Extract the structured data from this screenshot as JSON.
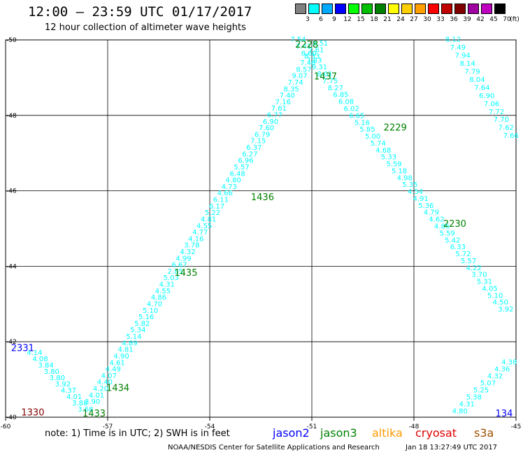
{
  "header": {
    "title": "12:00 – 23:59 UTC 01/17/2017",
    "subtitle": "12 hour collection of altimeter wave heights"
  },
  "legend": {
    "unit": "(ft)",
    "items": [
      {
        "label": "3",
        "color": "#808080"
      },
      {
        "label": "6",
        "color": "#00ffff"
      },
      {
        "label": "9",
        "color": "#00aaff"
      },
      {
        "label": "12",
        "color": "#0000ff"
      },
      {
        "label": "15",
        "color": "#00ff00"
      },
      {
        "label": "18",
        "color": "#00c000"
      },
      {
        "label": "21",
        "color": "#008000"
      },
      {
        "label": "24",
        "color": "#ffff00"
      },
      {
        "label": "27",
        "color": "#ffd000"
      },
      {
        "label": "30",
        "color": "#ffa000"
      },
      {
        "label": "33",
        "color": "#ff0000"
      },
      {
        "label": "36",
        "color": "#c00000"
      },
      {
        "label": "39",
        "color": "#800000"
      },
      {
        "label": "42",
        "color": "#a000a0"
      },
      {
        "label": "45",
        "color": "#c000c0"
      },
      {
        "label": "70",
        "color": "#000000"
      }
    ]
  },
  "map": {
    "lon_range": [
      -60,
      -45
    ],
    "lat_range": [
      -50,
      -40
    ],
    "lon_ticks": [
      {
        "value": -60,
        "label": "-60"
      },
      {
        "value": -57,
        "label": "-57"
      },
      {
        "value": -54,
        "label": "-54"
      },
      {
        "value": -51,
        "label": "-51"
      },
      {
        "value": -48,
        "label": "-48"
      },
      {
        "value": -45,
        "label": "-45"
      }
    ],
    "lat_ticks": [
      {
        "value": -40,
        "label": "-40"
      },
      {
        "value": -42,
        "label": "-42"
      },
      {
        "value": -44,
        "label": "-44"
      },
      {
        "value": -46,
        "label": "-46"
      },
      {
        "value": -48,
        "label": "-48"
      },
      {
        "value": -50,
        "label": "-50"
      }
    ],
    "tracks": [
      {
        "color": "#00ffff",
        "lon_start": -59.15,
        "lat_start": -41.65,
        "lon_end": -57.65,
        "lat_end": -40.15,
        "values": [
          "4.14",
          "4.08",
          "3.84",
          "3.80",
          "3.80",
          "3.92",
          "4.37",
          "4.01",
          "3.88",
          "3.68"
        ]
      },
      {
        "color": "#00ffff",
        "lon_start": -57.45,
        "lat_start": -40.35,
        "lon_end": -50.75,
        "lat_end": -49.85,
        "values": [
          "3.90",
          "4.01",
          "4.20",
          "4.40",
          "4.07",
          "4.49",
          "4.61",
          "4.90",
          "4.81",
          "4.89",
          "5.14",
          "5.34",
          "5.82",
          "5.16",
          "5.10",
          "4.70",
          "4.86",
          "4.55",
          "4.31",
          "5.03",
          "2.85",
          "6.67",
          "4.99",
          "4.32",
          "3.78",
          "4.16",
          "4.77",
          "4.55",
          "4.81",
          "5.22",
          "6.17",
          "6.11",
          "4.66",
          "4.73",
          "4.80",
          "6.48",
          "5.57",
          "6.96",
          "6.27",
          "6.37",
          "7.15",
          "6.79",
          "7.60",
          "6.90",
          "6.77",
          "7.61",
          "7.16",
          "7.40",
          "8.35",
          "7.74",
          "9.07",
          "8.57",
          "7.48",
          "8.33",
          "7.61",
          "8.51"
        ]
      },
      {
        "color": "#00ffff",
        "lon_start": -51.4,
        "lat_start": -49.95,
        "lon_end": -45.3,
        "lat_end": -42.8,
        "values": [
          "7.54",
          "7.41",
          "8.60",
          "7.83",
          "9.31",
          "8.01",
          "7.75",
          "8.27",
          "6.85",
          "6.08",
          "6.02",
          "6.65",
          "5.16",
          "5.85",
          "5.00",
          "5.74",
          "4.68",
          "5.33",
          "5.59",
          "5.18",
          "4.98",
          "5.35",
          "4.54",
          "4.91",
          "5.36",
          "4.79",
          "4.62",
          "4.86",
          "5.59",
          "5.42",
          "6.33",
          "5.72",
          "5.57",
          "4.22",
          "3.70",
          "5.31",
          "4.05",
          "5.10",
          "4.50",
          "3.92"
        ]
      },
      {
        "color": "#00ffff",
        "lon_start": -46.65,
        "lat_start": -40.1,
        "lon_end": -45.2,
        "lat_end": -41.4,
        "values": [
          "4.80",
          "4.31",
          "5.38",
          "5.25",
          "5.07",
          "4.32",
          "4.36",
          "4.38"
        ]
      },
      {
        "color": "#00ffff",
        "lon_start": -46.85,
        "lat_start": -49.95,
        "lon_end": -45.15,
        "lat_end": -47.4,
        "values": [
          "8.12",
          "7.49",
          "7.94",
          "8.14",
          "7.79",
          "8.04",
          "7.64",
          "6.90",
          "7.06",
          "7.72",
          "7.70",
          "7.62",
          "7.66"
        ]
      }
    ],
    "labels": [
      {
        "text": "1330",
        "lon": -59.2,
        "lat": -40.05,
        "color": "#800000"
      },
      {
        "text": "1433",
        "lon": -57.4,
        "lat": -40.02,
        "color": "#008000"
      },
      {
        "text": "1434",
        "lon": -56.7,
        "lat": -40.7,
        "color": "#008000"
      },
      {
        "text": "2331",
        "lon": -59.5,
        "lat": -41.75,
        "color": "#0000ff"
      },
      {
        "text": "1435",
        "lon": -54.7,
        "lat": -43.75,
        "color": "#008000"
      },
      {
        "text": "1436",
        "lon": -52.45,
        "lat": -45.75,
        "color": "#008000"
      },
      {
        "text": "2229",
        "lon": -48.55,
        "lat": -47.6,
        "color": "#008000"
      },
      {
        "text": "1437",
        "lon": -50.6,
        "lat": -48.95,
        "color": "#008000"
      },
      {
        "text": "2228",
        "lon": -51.15,
        "lat": -49.8,
        "color": "#008000"
      },
      {
        "text": "2230",
        "lon": -46.8,
        "lat": -45.05,
        "color": "#008000"
      },
      {
        "text": "134",
        "lon": -45.35,
        "lat": -40.02,
        "color": "#0000ff"
      }
    ]
  },
  "satellites": [
    {
      "name": "jason2",
      "color": "#0000ff"
    },
    {
      "name": "jason3",
      "color": "#008000"
    },
    {
      "name": "altika",
      "color": "#ff9900"
    },
    {
      "name": "cryosat",
      "color": "#e00000"
    },
    {
      "name": "s3a",
      "color": "#a05000"
    }
  ],
  "footer": {
    "note": "note:  1) Time is in UTC;  2) SWH is in feet",
    "credit": "NOAA/NESDIS Center for Satellite Applications and Research",
    "timestamp": "Jan 18 13:27:49 UTC 2017"
  }
}
